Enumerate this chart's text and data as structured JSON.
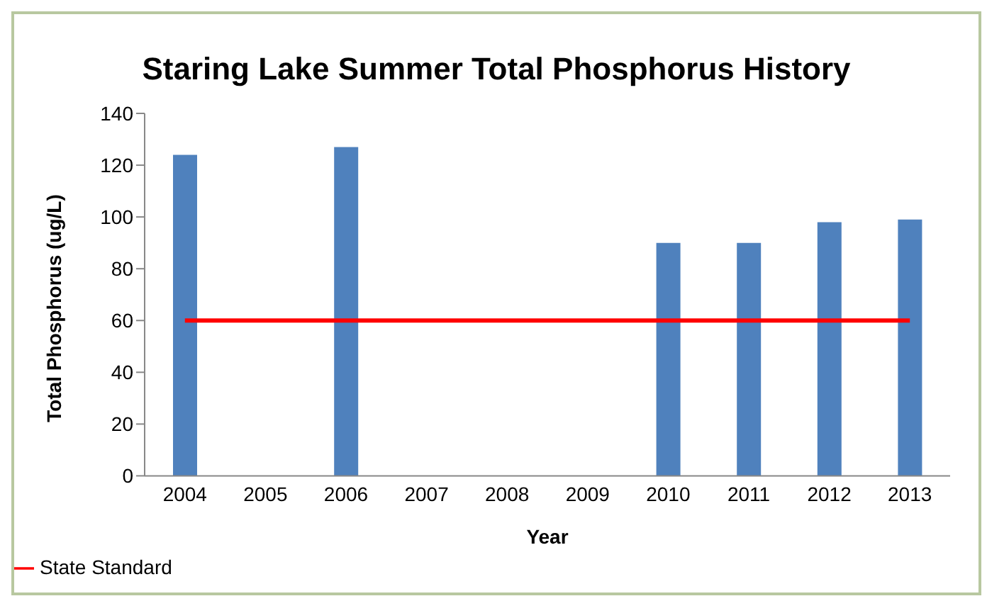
{
  "chart_data": {
    "type": "bar",
    "title": "Staring Lake Summer Total Phosphorus History",
    "xlabel": "Year",
    "ylabel": "Total Phosphorus (ug/L)",
    "categories": [
      "2004",
      "2005",
      "2006",
      "2007",
      "2008",
      "2009",
      "2010",
      "2011",
      "2012",
      "2013"
    ],
    "series": [
      {
        "color": "#4f81bd",
        "values": [
          124,
          null,
          127,
          null,
          null,
          null,
          90,
          90,
          98,
          99
        ]
      },
      {
        "type": "line",
        "name": "State Standard",
        "color": "#ff0000",
        "values": [
          60,
          60,
          60,
          60,
          60,
          60,
          60,
          60,
          60,
          60
        ]
      }
    ],
    "ylim": [
      0,
      140
    ],
    "yticks": [
      0,
      20,
      40,
      60,
      80,
      100,
      120,
      140
    ],
    "grid": false,
    "legend": "bottom left",
    "marker": "none",
    "line_style": "solid"
  }
}
